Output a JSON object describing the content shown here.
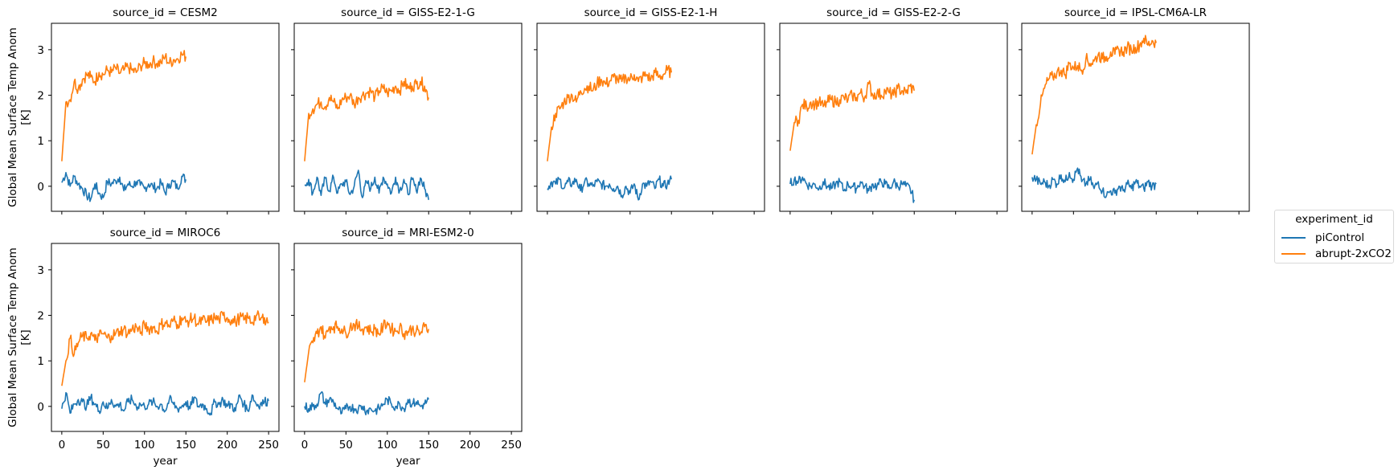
{
  "figure": {
    "ylabel_line1": "Global Mean Surface Temp Anom",
    "ylabel_line2": "[K]",
    "xlabel": "year",
    "colors": {
      "piControl": "#1f77b4",
      "abrupt-2xCO2": "#ff7f0e",
      "axes": "#000000"
    }
  },
  "legend": {
    "title": "experiment_id",
    "items": [
      {
        "label": "piControl",
        "color": "#1f77b4"
      },
      {
        "label": "abrupt-2xCO2",
        "color": "#ff7f0e"
      }
    ]
  },
  "chart_data": {
    "type": "line",
    "layout": "facet grid 2 rows x 5 cols (col_wrap=5), shared axes",
    "xlabel": "year",
    "ylabel": "Global Mean Surface Temp Anom [K]",
    "xlim": [
      -12.5,
      262.5
    ],
    "ylim": [
      -0.55,
      3.58
    ],
    "xticks": [
      0,
      50,
      100,
      150,
      200,
      250
    ],
    "yticks": [
      0,
      1,
      2,
      3
    ],
    "legend_title": "experiment_id",
    "legend_position": "right",
    "sample_step_years": 5,
    "panels": [
      {
        "title": "source_id = CESM2",
        "row": 0,
        "col": 0,
        "series": [
          {
            "name": "piControl",
            "x_end": 150,
            "values": [
              0.08,
              0.3,
              0.0,
              0.22,
              0.05,
              -0.05,
              -0.2,
              -0.28,
              0.05,
              -0.15,
              -0.25,
              0.1,
              0.05,
              0.12,
              0.2,
              -0.1,
              0.05,
              0.0,
              0.1,
              0.02,
              -0.05,
              0.05,
              0.0,
              -0.05,
              0.08,
              -0.15,
              0.05,
              0.1,
              -0.05,
              0.22,
              0.15
            ]
          },
          {
            "name": "abrupt-2xCO2",
            "x_end": 150,
            "values": [
              0.55,
              1.85,
              1.9,
              2.3,
              2.15,
              2.35,
              2.45,
              2.4,
              2.3,
              2.5,
              2.45,
              2.55,
              2.5,
              2.6,
              2.48,
              2.55,
              2.62,
              2.55,
              2.5,
              2.65,
              2.7,
              2.68,
              2.75,
              2.7,
              2.72,
              2.85,
              2.7,
              2.78,
              2.8,
              2.9,
              2.85
            ]
          }
        ]
      },
      {
        "title": "source_id = GISS-E2-1-G",
        "row": 0,
        "col": 1,
        "series": [
          {
            "name": "piControl",
            "x_end": 150,
            "values": [
              0.02,
              0.15,
              -0.15,
              0.2,
              -0.2,
              0.18,
              -0.1,
              0.2,
              -0.15,
              0.05,
              0.1,
              -0.18,
              0.0,
              0.35,
              -0.25,
              0.1,
              -0.05,
              0.2,
              -0.15,
              0.2,
              0.05,
              -0.15,
              0.2,
              -0.1,
              0.15,
              -0.18,
              0.15,
              -0.1,
              0.18,
              -0.05,
              -0.3
            ]
          },
          {
            "name": "abrupt-2xCO2",
            "x_end": 150,
            "values": [
              0.55,
              1.6,
              1.7,
              1.8,
              1.85,
              1.75,
              1.95,
              1.85,
              1.7,
              1.9,
              1.95,
              2.0,
              1.8,
              1.95,
              2.0,
              2.05,
              2.1,
              1.95,
              2.1,
              2.15,
              2.05,
              2.1,
              2.2,
              2.1,
              2.3,
              2.15,
              2.2,
              2.25,
              2.3,
              2.2,
              1.95
            ]
          }
        ]
      },
      {
        "title": "source_id = GISS-E2-1-H",
        "row": 0,
        "col": 2,
        "series": [
          {
            "name": "piControl",
            "x_end": 150,
            "values": [
              -0.05,
              0.1,
              0.05,
              0.15,
              -0.05,
              0.1,
              0.05,
              0.15,
              -0.1,
              0.1,
              0.05,
              0.0,
              0.1,
              0.05,
              0.0,
              0.05,
              -0.05,
              0.0,
              -0.2,
              0.0,
              -0.15,
              0.05,
              -0.3,
              0.05,
              0.0,
              0.1,
              -0.05,
              0.15,
              0.0,
              0.05,
              0.15
            ]
          },
          {
            "name": "abrupt-2xCO2",
            "x_end": 150,
            "values": [
              0.55,
              1.3,
              1.6,
              1.7,
              1.85,
              1.95,
              2.0,
              1.85,
              2.1,
              2.15,
              2.2,
              2.1,
              2.25,
              2.35,
              2.25,
              2.3,
              2.4,
              2.35,
              2.3,
              2.4,
              2.35,
              2.45,
              2.3,
              2.4,
              2.45,
              2.35,
              2.5,
              2.4,
              2.45,
              2.55,
              2.5
            ]
          }
        ]
      },
      {
        "title": "source_id = GISS-E2-2-G",
        "row": 0,
        "col": 3,
        "series": [
          {
            "name": "piControl",
            "x_end": 150,
            "values": [
              0.05,
              0.15,
              0.1,
              0.2,
              0.05,
              0.0,
              0.05,
              -0.05,
              0.1,
              0.0,
              -0.05,
              0.05,
              0.1,
              -0.1,
              0.05,
              0.0,
              -0.05,
              0.1,
              0.0,
              -0.1,
              0.05,
              0.0,
              0.1,
              0.05,
              -0.05,
              0.1,
              0.0,
              0.05,
              0.0,
              -0.05,
              -0.3
            ]
          },
          {
            "name": "abrupt-2xCO2",
            "x_end": 150,
            "values": [
              0.78,
              1.4,
              1.45,
              1.8,
              1.75,
              1.85,
              1.8,
              1.85,
              1.75,
              1.85,
              1.9,
              1.85,
              1.9,
              1.95,
              1.9,
              2.0,
              1.95,
              2.05,
              1.95,
              2.25,
              2.0,
              2.05,
              2.0,
              2.1,
              2.05,
              2.0,
              2.15,
              2.1,
              2.05,
              2.2,
              2.1
            ]
          }
        ]
      },
      {
        "title": "source_id = IPSL-CM6A-LR",
        "row": 0,
        "col": 4,
        "series": [
          {
            "name": "piControl",
            "x_end": 150,
            "values": [
              0.2,
              0.15,
              0.05,
              0.1,
              0.0,
              0.15,
              0.05,
              0.25,
              0.1,
              0.3,
              0.15,
              0.4,
              0.1,
              0.05,
              0.15,
              -0.05,
              0.1,
              -0.1,
              -0.2,
              -0.1,
              -0.15,
              0.0,
              -0.1,
              0.05,
              -0.05,
              0.1,
              0.0,
              -0.05,
              0.1,
              0.0,
              0.05
            ]
          },
          {
            "name": "abrupt-2xCO2",
            "x_end": 150,
            "values": [
              0.7,
              1.35,
              1.8,
              2.15,
              2.35,
              2.4,
              2.5,
              2.55,
              2.45,
              2.7,
              2.6,
              2.65,
              2.55,
              2.8,
              2.7,
              2.75,
              2.9,
              2.8,
              2.85,
              2.95,
              2.9,
              3.0,
              2.95,
              3.05,
              3.0,
              3.05,
              3.1,
              3.25,
              3.1,
              3.2,
              3.15
            ]
          }
        ]
      },
      {
        "title": "source_id = MIROC6",
        "row": 1,
        "col": 0,
        "series": [
          {
            "name": "piControl",
            "x_end": 250,
            "values": [
              -0.05,
              0.3,
              -0.15,
              0.05,
              0.15,
              0.1,
              0.0,
              0.2,
              0.05,
              -0.1,
              0.1,
              -0.05,
              0.15,
              0.0,
              0.05,
              -0.1,
              0.1,
              0.15,
              0.0,
              0.05,
              0.0,
              0.05,
              0.1,
              0.0,
              0.05,
              -0.1,
              0.15,
              0.05,
              -0.05,
              0.0,
              0.1,
              -0.05,
              0.2,
              0.0,
              0.05,
              -0.05,
              -0.15,
              0.1,
              0.05,
              0.15,
              0.0,
              0.05,
              -0.1,
              0.25,
              0.05,
              -0.1,
              0.25,
              0.05,
              0.05,
              0.1,
              0.12
            ]
          },
          {
            "name": "abrupt-2xCO2",
            "x_end": 250,
            "values": [
              0.45,
              1.0,
              1.5,
              1.15,
              1.4,
              1.55,
              1.5,
              1.6,
              1.45,
              1.55,
              1.6,
              1.5,
              1.55,
              1.6,
              1.65,
              1.7,
              1.6,
              1.7,
              1.75,
              1.6,
              1.8,
              1.7,
              1.75,
              1.65,
              1.8,
              1.85,
              1.75,
              1.9,
              1.8,
              1.95,
              1.85,
              1.9,
              1.95,
              1.8,
              1.9,
              1.85,
              1.9,
              1.95,
              1.9,
              2.0,
              1.95,
              1.9,
              1.85,
              1.95,
              1.9,
              1.95,
              1.85,
              2.0,
              1.9,
              1.95,
              1.85
            ]
          }
        ]
      },
      {
        "title": "source_id = MRI-ESM2-0",
        "row": 1,
        "col": 1,
        "series": [
          {
            "name": "piControl",
            "x_end": 150,
            "values": [
              0.0,
              -0.05,
              0.0,
              0.05,
              0.3,
              0.05,
              0.15,
              0.1,
              -0.05,
              -0.15,
              -0.05,
              0.0,
              -0.05,
              -0.05,
              0.0,
              -0.1,
              -0.05,
              -0.1,
              -0.05,
              0.05,
              0.15,
              0.05,
              0.0,
              0.05,
              -0.05,
              0.15,
              0.05,
              0.1,
              0.0,
              0.05,
              0.15
            ]
          },
          {
            "name": "abrupt-2xCO2",
            "x_end": 150,
            "values": [
              0.53,
              1.2,
              1.4,
              1.6,
              1.75,
              1.5,
              1.75,
              1.75,
              1.75,
              1.7,
              1.6,
              1.75,
              1.8,
              1.75,
              1.7,
              1.75,
              1.65,
              1.7,
              1.6,
              1.75,
              1.85,
              1.7,
              1.65,
              1.75,
              1.6,
              1.65,
              1.7,
              1.65,
              1.6,
              1.75,
              1.7
            ]
          }
        ]
      }
    ]
  }
}
